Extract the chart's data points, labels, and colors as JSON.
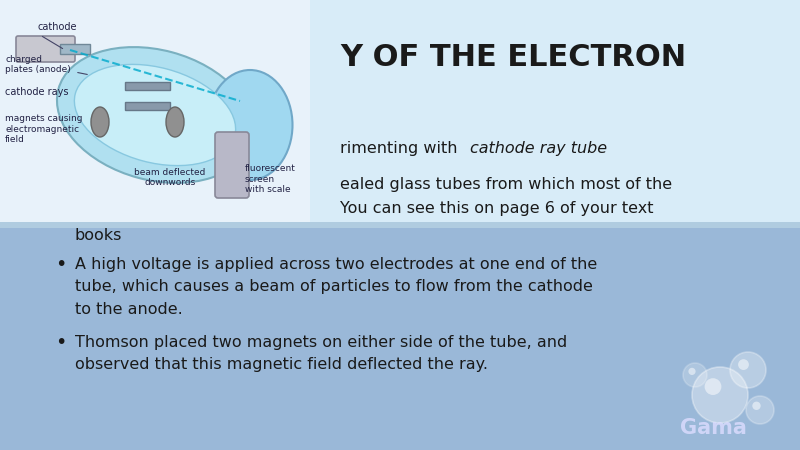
{
  "title": "Y OF THE ELECTRON",
  "bullet1_normal": "rimenting with ",
  "bullet1_italic": "cathode ray tube",
  "bullet2": "ealed glass tubes from which most of the\nYou can see this on page 6 of your text\nbooks",
  "bullet3": "A high voltage is applied across two electrodes at one end of the\ntube, which causes a beam of particles to flow from the cathode\nto the anode.",
  "bullet4": "Thomson placed two magnets on either side of the tube, and\nobserved that this magnetic field deflected the ray.",
  "bg_top_color": "#ddeeff",
  "bg_bottom_color": "#a8c8e8",
  "title_color": "#1a1a1a",
  "text_color": "#1a1a1a",
  "title_fontsize": 22,
  "text_fontsize": 11.5,
  "watermark": "Gama"
}
